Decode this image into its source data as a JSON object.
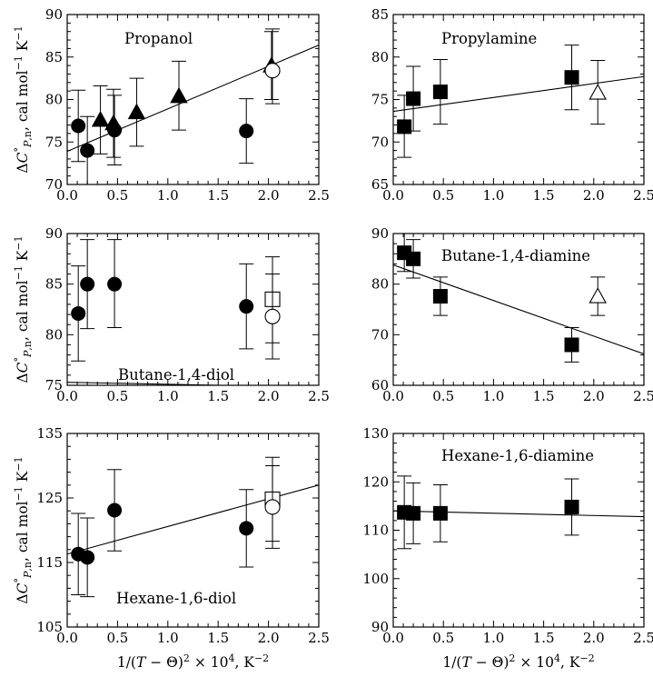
{
  "chart_data": [
    {
      "type": "scatter",
      "title": "Propanol",
      "xlim": [
        0.0,
        2.5
      ],
      "ylim": [
        70,
        90
      ],
      "xticks": [
        "0.0",
        "0.5",
        "1.0",
        "1.5",
        "2.0",
        "2.5"
      ],
      "yticks": [
        "70",
        "75",
        "80",
        "85",
        "90"
      ],
      "ylabel": "ΔC°P,n, cal mol⁻¹ K⁻¹",
      "xlabel": "",
      "fit_line": [
        [
          0.0,
          73.9
        ],
        [
          2.5,
          86.4
        ]
      ],
      "series": [
        {
          "marker": "filled-circle",
          "points": [
            {
              "x": 0.11,
              "y": 76.9,
              "lo": 72.7,
              "hi": 81.1
            },
            {
              "x": 0.2,
              "y": 74.0,
              "lo": 70.0,
              "hi": 78.0
            },
            {
              "x": 0.47,
              "y": 76.4,
              "lo": 72.3,
              "hi": 80.5
            },
            {
              "x": 1.78,
              "y": 76.3,
              "lo": 72.5,
              "hi": 80.1
            }
          ]
        },
        {
          "marker": "filled-triangle",
          "points": [
            {
              "x": 0.33,
              "y": 77.6,
              "lo": 73.6,
              "hi": 81.6
            },
            {
              "x": 0.46,
              "y": 77.2,
              "lo": 73.2,
              "hi": 81.2
            },
            {
              "x": 0.69,
              "y": 78.5,
              "lo": 74.5,
              "hi": 82.5
            },
            {
              "x": 1.11,
              "y": 80.4,
              "lo": 76.4,
              "hi": 84.5
            },
            {
              "x": 2.03,
              "y": 84.0,
              "lo": 80.0,
              "hi": 88.0
            }
          ]
        },
        {
          "marker": "open-circle",
          "points": [
            {
              "x": 2.04,
              "y": 83.4,
              "lo": 79.5,
              "hi": 88.3
            }
          ]
        }
      ]
    },
    {
      "type": "scatter",
      "title": "Propylamine",
      "xlim": [
        0.0,
        2.5
      ],
      "ylim": [
        65,
        85
      ],
      "xticks": [
        "0.0",
        "0.5",
        "1.0",
        "1.5",
        "2.0",
        "2.5"
      ],
      "yticks": [
        "65",
        "70",
        "75",
        "80",
        "85"
      ],
      "ylabel": "",
      "xlabel": "",
      "fit_line": [
        [
          0.0,
          73.6
        ],
        [
          2.5,
          77.7
        ]
      ],
      "series": [
        {
          "marker": "filled-square",
          "points": [
            {
              "x": 0.11,
              "y": 71.8,
              "lo": 68.2,
              "hi": 75.5
            },
            {
              "x": 0.2,
              "y": 75.1,
              "lo": 71.3,
              "hi": 78.9
            },
            {
              "x": 0.47,
              "y": 75.9,
              "lo": 72.1,
              "hi": 79.7
            },
            {
              "x": 1.78,
              "y": 77.6,
              "lo": 73.8,
              "hi": 81.4
            }
          ]
        },
        {
          "marker": "open-triangle",
          "points": [
            {
              "x": 2.04,
              "y": 75.8,
              "lo": 72.1,
              "hi": 79.6
            }
          ]
        }
      ]
    },
    {
      "type": "scatter",
      "title": "Butane-1,4-diol",
      "xlim": [
        0.0,
        2.5
      ],
      "ylim": [
        75,
        90
      ],
      "xticks": [
        "0.0",
        "0.5",
        "1.0",
        "1.5",
        "2.0",
        "2.5"
      ],
      "yticks": [
        "75",
        "80",
        "85",
        "90"
      ],
      "ylabel": "ΔC°P,n, cal mol⁻¹ K⁻¹",
      "xlabel": "",
      "fit_line": [
        [
          0.0,
          75.3
        ],
        [
          2.5,
          74.8
        ]
      ],
      "series": [
        {
          "marker": "filled-circle",
          "points": [
            {
              "x": 0.11,
              "y": 82.1,
              "lo": 77.4,
              "hi": 86.8
            },
            {
              "x": 0.2,
              "y": 85.0,
              "lo": 80.6,
              "hi": 89.4
            },
            {
              "x": 0.47,
              "y": 85.0,
              "lo": 80.7,
              "hi": 89.4
            },
            {
              "x": 1.78,
              "y": 82.8,
              "lo": 78.6,
              "hi": 87.0
            }
          ]
        },
        {
          "marker": "open-square",
          "points": [
            {
              "x": 2.04,
              "y": 83.5,
              "lo": 79.2,
              "hi": 87.7
            }
          ]
        },
        {
          "marker": "open-circle",
          "points": [
            {
              "x": 2.04,
              "y": 81.8,
              "lo": 77.6,
              "hi": 86.0
            }
          ]
        }
      ]
    },
    {
      "type": "scatter",
      "title": "Butane-1,4-diamine",
      "xlim": [
        0.0,
        2.5
      ],
      "ylim": [
        60,
        90
      ],
      "xticks": [
        "0.0",
        "0.5",
        "1.0",
        "1.5",
        "2.0",
        "2.5"
      ],
      "yticks": [
        "60",
        "70",
        "80",
        "90"
      ],
      "ylabel": "",
      "xlabel": "",
      "fit_line": [
        [
          0.0,
          83.8
        ],
        [
          2.5,
          66.2
        ]
      ],
      "series": [
        {
          "marker": "filled-square",
          "points": [
            {
              "x": 0.11,
              "y": 86.2,
              "lo": 82.5,
              "hi": 90.0
            },
            {
              "x": 0.2,
              "y": 85.0,
              "lo": 81.2,
              "hi": 88.8
            },
            {
              "x": 0.47,
              "y": 77.6,
              "lo": 73.8,
              "hi": 81.4
            },
            {
              "x": 1.78,
              "y": 68.0,
              "lo": 64.6,
              "hi": 71.4
            }
          ]
        },
        {
          "marker": "open-triangle",
          "points": [
            {
              "x": 2.04,
              "y": 77.6,
              "lo": 73.8,
              "hi": 81.4
            }
          ]
        }
      ]
    },
    {
      "type": "scatter",
      "title": "Hexane-1,6-diol",
      "xlim": [
        0.0,
        2.5
      ],
      "ylim": [
        105,
        135
      ],
      "xticks": [
        "0.0",
        "0.5",
        "1.0",
        "1.5",
        "2.0",
        "2.5"
      ],
      "yticks": [
        "105",
        "115",
        "125",
        "135"
      ],
      "ylabel": "ΔC°P,n, cal mol⁻¹ K⁻¹",
      "xlabel": "1/(T − Θ)² × 10⁴, K⁻²",
      "fit_line": [
        [
          0.0,
          116.3
        ],
        [
          2.5,
          127.0
        ]
      ],
      "series": [
        {
          "marker": "filled-circle",
          "points": [
            {
              "x": 0.11,
              "y": 116.3,
              "lo": 110.0,
              "hi": 122.6
            },
            {
              "x": 0.2,
              "y": 115.8,
              "lo": 109.7,
              "hi": 121.9
            },
            {
              "x": 0.47,
              "y": 123.1,
              "lo": 116.8,
              "hi": 129.4
            },
            {
              "x": 1.78,
              "y": 120.3,
              "lo": 114.3,
              "hi": 126.3
            }
          ]
        },
        {
          "marker": "open-square",
          "points": [
            {
              "x": 2.04,
              "y": 124.8,
              "lo": 118.3,
              "hi": 131.3
            }
          ]
        },
        {
          "marker": "open-circle",
          "points": [
            {
              "x": 2.04,
              "y": 123.6,
              "lo": 117.2,
              "hi": 130.0
            }
          ]
        }
      ]
    },
    {
      "type": "scatter",
      "title": "Hexane-1,6-diamine",
      "xlim": [
        0.0,
        2.5
      ],
      "ylim": [
        90,
        130
      ],
      "xticks": [
        "0.0",
        "0.5",
        "1.0",
        "1.5",
        "2.0",
        "2.5"
      ],
      "yticks": [
        "90",
        "100",
        "110",
        "120",
        "130"
      ],
      "ylabel": "",
      "xlabel": "1/(T − Θ)² × 10⁴, K⁻²",
      "fit_line": [
        [
          0.0,
          114.0
        ],
        [
          2.5,
          112.8
        ]
      ],
      "series": [
        {
          "marker": "filled-square",
          "points": [
            {
              "x": 0.11,
              "y": 113.7,
              "lo": 106.2,
              "hi": 121.2
            },
            {
              "x": 0.2,
              "y": 113.5,
              "lo": 107.2,
              "hi": 119.8
            },
            {
              "x": 0.47,
              "y": 113.5,
              "lo": 107.6,
              "hi": 119.4
            },
            {
              "x": 1.78,
              "y": 114.8,
              "lo": 109.0,
              "hi": 120.6
            }
          ]
        }
      ]
    }
  ]
}
